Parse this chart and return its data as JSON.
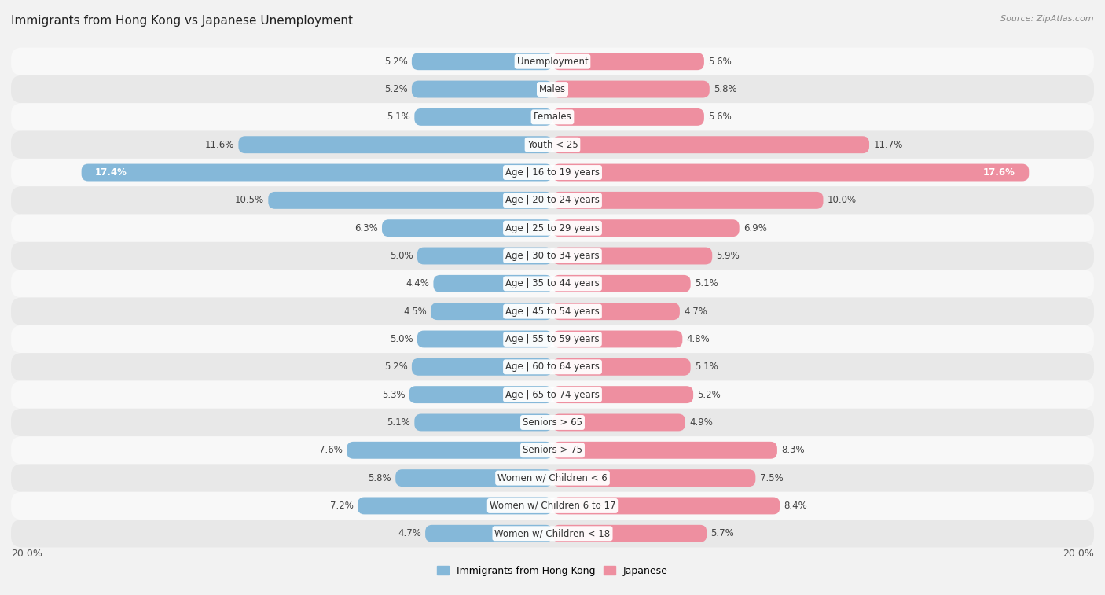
{
  "title": "Immigrants from Hong Kong vs Japanese Unemployment",
  "source": "Source: ZipAtlas.com",
  "categories": [
    "Unemployment",
    "Males",
    "Females",
    "Youth < 25",
    "Age | 16 to 19 years",
    "Age | 20 to 24 years",
    "Age | 25 to 29 years",
    "Age | 30 to 34 years",
    "Age | 35 to 44 years",
    "Age | 45 to 54 years",
    "Age | 55 to 59 years",
    "Age | 60 to 64 years",
    "Age | 65 to 74 years",
    "Seniors > 65",
    "Seniors > 75",
    "Women w/ Children < 6",
    "Women w/ Children 6 to 17",
    "Women w/ Children < 18"
  ],
  "left_values": [
    5.2,
    5.2,
    5.1,
    11.6,
    17.4,
    10.5,
    6.3,
    5.0,
    4.4,
    4.5,
    5.0,
    5.2,
    5.3,
    5.1,
    7.6,
    5.8,
    7.2,
    4.7
  ],
  "right_values": [
    5.6,
    5.8,
    5.6,
    11.7,
    17.6,
    10.0,
    6.9,
    5.9,
    5.1,
    4.7,
    4.8,
    5.1,
    5.2,
    4.9,
    8.3,
    7.5,
    8.4,
    5.7
  ],
  "left_color": "#85b8d9",
  "right_color": "#ee8fa0",
  "left_label": "Immigrants from Hong Kong",
  "right_label": "Japanese",
  "xlim": 20.0,
  "fig_bg": "#f2f2f2",
  "row_color_odd": "#e8e8e8",
  "row_color_even": "#f8f8f8",
  "title_fontsize": 11,
  "label_fontsize": 8.5,
  "value_fontsize": 8.5
}
